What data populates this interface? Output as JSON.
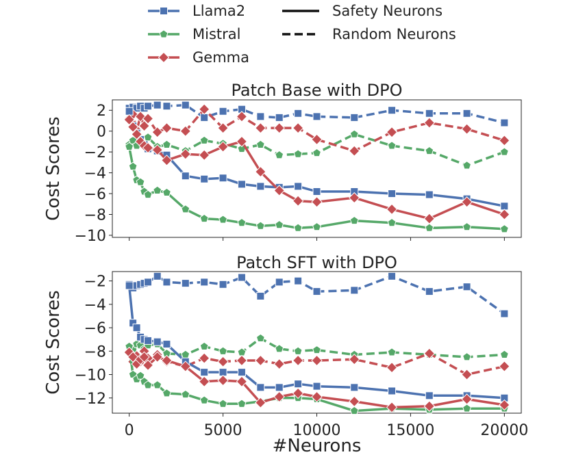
{
  "chart_data": [
    {
      "type": "line",
      "title": "Patch Base with DPO",
      "xlabel": "",
      "ylabel": "Cost Scores",
      "xlim": [
        -900,
        20900
      ],
      "ylim": [
        -10.2,
        3.0
      ],
      "x_ticks": [
        0,
        5000,
        10000,
        15000,
        20000
      ],
      "y_ticks": [
        2,
        0,
        -2,
        -4,
        -6,
        -8,
        -10
      ],
      "y_tick_labels": [
        "2",
        "0",
        "−2",
        "−4",
        "−6",
        "−8",
        "−10"
      ],
      "series": [
        {
          "name": "Llama2",
          "style": "solid",
          "x": [
            0,
            200,
            400,
            600,
            800,
            1000,
            1500,
            2000,
            3000,
            4000,
            5000,
            6000,
            7000,
            8000,
            9000,
            10000,
            12000,
            14000,
            16000,
            18000,
            20000
          ],
          "y": [
            1.9,
            0.5,
            -0.2,
            -0.8,
            -1.3,
            -1.7,
            -1.9,
            -2.3,
            -4.3,
            -4.6,
            -4.5,
            -5.1,
            -5.3,
            -5.4,
            -5.3,
            -5.8,
            -5.8,
            -6.0,
            -6.1,
            -6.5,
            -7.2
          ]
        },
        {
          "name": "Mistral",
          "style": "solid",
          "x": [
            0,
            200,
            400,
            600,
            800,
            1000,
            1500,
            2000,
            3000,
            4000,
            5000,
            6000,
            7000,
            8000,
            9000,
            10000,
            12000,
            14000,
            16000,
            18000,
            20000
          ],
          "y": [
            -1.5,
            -3.4,
            -4.7,
            -4.9,
            -5.8,
            -6.1,
            -5.7,
            -5.9,
            -7.5,
            -8.4,
            -8.5,
            -8.8,
            -9.1,
            -9.0,
            -9.3,
            -9.2,
            -8.6,
            -8.8,
            -9.3,
            -9.2,
            -9.4
          ]
        },
        {
          "name": "Gemma",
          "style": "solid",
          "x": [
            0,
            200,
            400,
            600,
            800,
            1000,
            1500,
            2000,
            3000,
            4000,
            5000,
            6000,
            7000,
            8000,
            9000,
            10000,
            12000,
            14000,
            16000,
            18000,
            20000
          ],
          "y": [
            1.1,
            0.4,
            -0.3,
            -1.0,
            -1.4,
            -1.6,
            -1.8,
            -2.8,
            -2.2,
            -2.3,
            -1.5,
            -1.0,
            -3.9,
            -5.7,
            -6.7,
            -6.8,
            -6.4,
            -7.5,
            -8.4,
            -6.8,
            -8.0
          ]
        },
        {
          "name": "Llama2",
          "style": "dashed",
          "x": [
            0,
            200,
            400,
            600,
            800,
            1000,
            1500,
            2000,
            3000,
            4000,
            5000,
            6000,
            7000,
            8000,
            9000,
            10000,
            12000,
            14000,
            16000,
            18000,
            20000
          ],
          "y": [
            2.2,
            2.3,
            2.2,
            2.4,
            2.2,
            2.4,
            2.5,
            2.4,
            2.5,
            1.3,
            1.9,
            2.1,
            1.4,
            1.3,
            1.7,
            1.4,
            1.3,
            2.0,
            1.7,
            1.7,
            0.8
          ]
        },
        {
          "name": "Mistral",
          "style": "dashed",
          "x": [
            0,
            200,
            400,
            600,
            800,
            1000,
            1500,
            2000,
            3000,
            4000,
            5000,
            6000,
            7000,
            8000,
            9000,
            10000,
            12000,
            14000,
            16000,
            18000,
            20000
          ],
          "y": [
            -1.3,
            -0.9,
            -1.4,
            -0.7,
            -1.2,
            -0.6,
            -1.5,
            -1.3,
            -1.9,
            -0.9,
            -1.2,
            -1.7,
            -1.3,
            -2.3,
            -2.2,
            -2.1,
            -0.3,
            -1.4,
            -1.9,
            -3.3,
            -2.0
          ]
        },
        {
          "name": "Gemma",
          "style": "dashed",
          "x": [
            0,
            200,
            400,
            600,
            800,
            1000,
            1500,
            2000,
            3000,
            4000,
            5000,
            6000,
            7000,
            8000,
            9000,
            10000,
            12000,
            14000,
            16000,
            18000,
            20000
          ],
          "y": [
            1.2,
            1.6,
            0.1,
            1.4,
            0.5,
            1.2,
            -0.1,
            0.3,
            0.0,
            2.1,
            0.3,
            1.4,
            0.3,
            0.3,
            0.3,
            -0.8,
            -1.9,
            -0.1,
            0.8,
            0.2,
            -0.9
          ]
        }
      ]
    },
    {
      "type": "line",
      "title": "Patch SFT with DPO",
      "xlabel": "#Neurons",
      "ylabel": "Cost Scores",
      "xlim": [
        -900,
        20900
      ],
      "ylim": [
        -13.3,
        -1.2
      ],
      "x_ticks": [
        0,
        5000,
        10000,
        15000,
        20000
      ],
      "x_tick_labels": [
        "0",
        "5000",
        "10000",
        "15000",
        "20000"
      ],
      "y_ticks": [
        -2,
        -4,
        -6,
        -8,
        -10,
        -12
      ],
      "y_tick_labels": [
        "−2",
        "−4",
        "−6",
        "−8",
        "−10",
        "−12"
      ],
      "series": [
        {
          "name": "Llama2",
          "style": "solid",
          "x": [
            0,
            200,
            400,
            600,
            800,
            1000,
            1500,
            2000,
            3000,
            4000,
            5000,
            6000,
            7000,
            8000,
            9000,
            10000,
            12000,
            14000,
            16000,
            18000,
            20000
          ],
          "y": [
            -2.4,
            -5.6,
            -6.0,
            -6.8,
            -7.0,
            -7.1,
            -7.2,
            -7.4,
            -8.9,
            -9.8,
            -9.8,
            -9.8,
            -11.1,
            -11.1,
            -10.8,
            -11.0,
            -11.1,
            -11.4,
            -11.8,
            -11.8,
            -12.0
          ]
        },
        {
          "name": "Mistral",
          "style": "solid",
          "x": [
            0,
            200,
            400,
            600,
            800,
            1000,
            1500,
            2000,
            3000,
            4000,
            5000,
            6000,
            7000,
            8000,
            9000,
            10000,
            12000,
            14000,
            16000,
            18000,
            20000
          ],
          "y": [
            -7.6,
            -10.0,
            -10.4,
            -10.1,
            -10.6,
            -10.9,
            -10.9,
            -11.6,
            -11.7,
            -12.2,
            -12.5,
            -12.5,
            -12.3,
            -12.0,
            -12.0,
            -12.1,
            -13.1,
            -12.9,
            -13.0,
            -12.9,
            -12.9
          ]
        },
        {
          "name": "Gemma",
          "style": "solid",
          "x": [
            0,
            200,
            400,
            600,
            800,
            1000,
            1500,
            2000,
            3000,
            4000,
            5000,
            6000,
            7000,
            8000,
            9000,
            10000,
            12000,
            14000,
            16000,
            18000,
            20000
          ],
          "y": [
            -8.1,
            -8.5,
            -9.1,
            -8.7,
            -8.5,
            -9.2,
            -8.5,
            -8.8,
            -9.3,
            -10.6,
            -10.5,
            -10.6,
            -12.4,
            -11.9,
            -11.6,
            -11.9,
            -12.3,
            -12.8,
            -12.7,
            -12.1,
            -12.6
          ]
        },
        {
          "name": "Llama2",
          "style": "dashed",
          "x": [
            0,
            200,
            400,
            600,
            800,
            1000,
            1500,
            2000,
            3000,
            4000,
            5000,
            6000,
            7000,
            8000,
            9000,
            10000,
            12000,
            14000,
            16000,
            18000,
            20000
          ],
          "y": [
            -2.3,
            -2.6,
            -2.4,
            -2.3,
            -2.2,
            -2.1,
            -1.6,
            -2.1,
            -2.2,
            -2.1,
            -2.3,
            -1.7,
            -3.3,
            -2.1,
            -2.0,
            -2.9,
            -2.8,
            -1.6,
            -2.9,
            -2.5,
            -4.8
          ]
        },
        {
          "name": "Mistral",
          "style": "dashed",
          "x": [
            0,
            200,
            400,
            600,
            800,
            1000,
            1500,
            2000,
            3000,
            4000,
            5000,
            6000,
            7000,
            8000,
            9000,
            10000,
            12000,
            14000,
            16000,
            18000,
            20000
          ],
          "y": [
            -7.6,
            -7.9,
            -7.4,
            -7.5,
            -7.8,
            -7.5,
            -7.4,
            -8.2,
            -8.3,
            -7.6,
            -8.0,
            -8.1,
            -6.9,
            -7.8,
            -8.0,
            -7.9,
            -8.3,
            -8.1,
            -8.3,
            -8.5,
            -8.3
          ]
        },
        {
          "name": "Gemma",
          "style": "dashed",
          "x": [
            0,
            200,
            400,
            600,
            800,
            1000,
            1500,
            2000,
            3000,
            4000,
            5000,
            6000,
            7000,
            8000,
            9000,
            10000,
            12000,
            14000,
            16000,
            18000,
            20000
          ],
          "y": [
            -8.1,
            -8.9,
            -8.4,
            -8.9,
            -8.0,
            -8.6,
            -8.3,
            -8.9,
            -9.3,
            -8.6,
            -8.9,
            -8.8,
            -8.8,
            -9.1,
            -8.8,
            -8.8,
            -8.7,
            -9.4,
            -8.2,
            -10.0,
            -9.3
          ]
        }
      ]
    }
  ],
  "legend": {
    "placement": "top-center",
    "models": [
      {
        "label": "Llama2",
        "color": "#4c72b0",
        "marker": "square"
      },
      {
        "label": "Mistral",
        "color": "#55a868",
        "marker": "pentagon"
      },
      {
        "label": "Gemma",
        "color": "#c44e52",
        "marker": "diamond"
      }
    ],
    "styles": [
      {
        "label": "Safety Neurons",
        "dash": "solid"
      },
      {
        "label": "Random Neurons",
        "dash": "dashed"
      }
    ]
  },
  "colors": {
    "Llama2": "#4c72b0",
    "Mistral": "#55a868",
    "Gemma": "#c44e52"
  }
}
